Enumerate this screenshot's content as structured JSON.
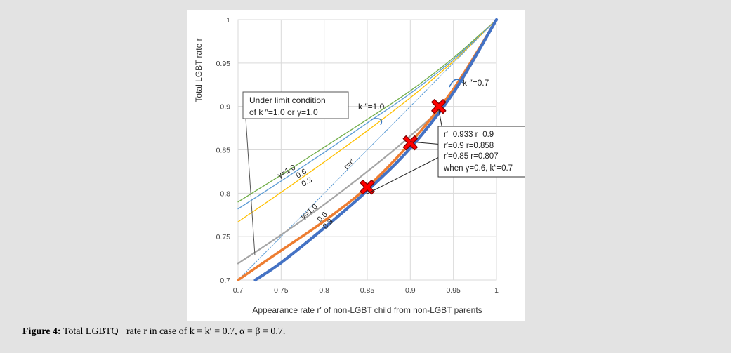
{
  "caption": {
    "label": "Figure 4:",
    "text": "Total LGBTQ+ rate r in case of k = k′ = 0.7, α = β = 0.7."
  },
  "chart_data": {
    "type": "line",
    "title": "",
    "xlabel": "Appearance rate  r′ of non-LGBT child from non-LGBT parents",
    "ylabel": "Total LGBT rate  r",
    "xlim": [
      0.7,
      1.0
    ],
    "ylim": [
      0.7,
      1.0
    ],
    "x_ticks": [
      "0.7",
      "0.75",
      "0.8",
      "0.85",
      "0.9",
      "0.95",
      "1"
    ],
    "y_ticks": [
      "0.7",
      "0.75",
      "0.8",
      "0.85",
      "0.9",
      "0.95",
      "1"
    ],
    "grid": true,
    "series": [
      {
        "group": "limit",
        "color": "#70ad47",
        "width": 1.3,
        "x": [
          0.7,
          0.75,
          0.8,
          0.85,
          0.9,
          0.95,
          1.0
        ],
        "y": [
          0.79,
          0.821,
          0.853,
          0.885,
          0.918,
          0.956,
          1.0
        ]
      },
      {
        "group": "limit",
        "color": "#5b9bd5",
        "width": 1.3,
        "x": [
          0.7,
          0.75,
          0.8,
          0.85,
          0.9,
          0.95,
          1.0
        ],
        "y": [
          0.782,
          0.814,
          0.847,
          0.881,
          0.915,
          0.954,
          1.0
        ]
      },
      {
        "group": "limit",
        "color": "#ffc000",
        "width": 1.3,
        "x": [
          0.7,
          0.75,
          0.8,
          0.85,
          0.9,
          0.95,
          1.0
        ],
        "y": [
          0.767,
          0.801,
          0.836,
          0.872,
          0.91,
          0.952,
          1.0
        ]
      },
      {
        "name": "r=r′",
        "color": "#5b9bd5",
        "width": 1,
        "dashed": true,
        "x": [
          0.7,
          1.0
        ],
        "y": [
          0.7,
          1.0
        ]
      },
      {
        "group": "k″=0.7",
        "color": "#a5a5a5",
        "width": 2.2,
        "x": [
          0.7,
          0.75,
          0.8,
          0.85,
          0.9,
          0.95,
          1.0
        ],
        "y": [
          0.719,
          0.752,
          0.787,
          0.825,
          0.866,
          0.915,
          1.0
        ]
      },
      {
        "group": "k″=0.7",
        "color": "#ed7d31",
        "width": 3.6,
        "x": [
          0.7,
          0.75,
          0.8,
          0.85,
          0.9,
          0.95,
          1.0
        ],
        "y": [
          0.7,
          0.734,
          0.768,
          0.807,
          0.858,
          0.92,
          1.0
        ]
      },
      {
        "group": "k″=0.7",
        "color": "#4472c4",
        "width": 4.2,
        "x": [
          0.72,
          0.75,
          0.8,
          0.85,
          0.9,
          0.95,
          1.0
        ],
        "y": [
          0.7,
          0.72,
          0.76,
          0.803,
          0.852,
          0.916,
          1.0
        ]
      }
    ],
    "markers": [
      {
        "x": 0.85,
        "y": 0.807
      },
      {
        "x": 0.9,
        "y": 0.858
      },
      {
        "x": 0.933,
        "y": 0.9
      }
    ],
    "annotations": {
      "limit_box_line1": "Under limit condition",
      "limit_box_line2": "of  k ″=1.0  or  γ=1.0",
      "k10": "k ″=1.0",
      "k07": "k ″=0.7",
      "rr": "r=r′",
      "upper_labels": [
        "γ=1.0",
        "0.6",
        "0.3"
      ],
      "lower_labels": [
        "γ=1.0",
        "0.6",
        "0.3"
      ],
      "info": [
        "r′=0.933  r=0.9",
        "r′=0.9     r=0.858",
        "r′=0.85    r=0.807",
        "when  γ=0.6,  k″=0.7"
      ]
    }
  }
}
